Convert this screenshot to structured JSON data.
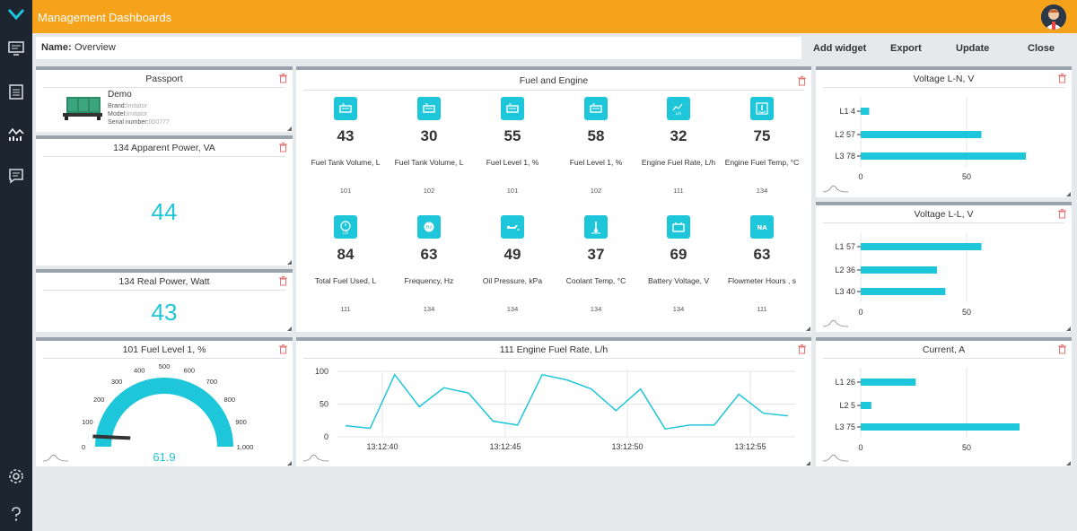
{
  "topbar": {
    "crumb1": "Management",
    "crumb2": "Dashboards"
  },
  "namebar": {
    "label": "Name:",
    "value": "Overview"
  },
  "toolbar": {
    "add": "Add widget",
    "export": "Export",
    "update": "Update",
    "close": "Close"
  },
  "passport": {
    "title": "Passport",
    "name": "Demo",
    "brand_label": "Brand:",
    "brand": "Imitator",
    "model_label": "Model:",
    "model": "Imitator",
    "serial_label": "Serial number:",
    "serial": "000777"
  },
  "apparent": {
    "title": "134  Apparent Power,  VA",
    "value": "44"
  },
  "real": {
    "title": "134  Real Power,  Watt",
    "value": "43"
  },
  "gauge": {
    "title": "101  Fuel Level 1,  %",
    "value": "61.9",
    "ticks": [
      "0",
      "100",
      "200",
      "300",
      "400",
      "500",
      "600",
      "700",
      "800",
      "900",
      "1,000"
    ]
  },
  "fuel_engine": {
    "title": "Fuel and Engine",
    "metrics": [
      {
        "icon": "fuel-tank-icon",
        "value": "43",
        "label": "Fuel Tank Volume, L",
        "id": "101"
      },
      {
        "icon": "fuel-tank-icon",
        "value": "30",
        "label": "Fuel Tank Volume, L",
        "id": "102"
      },
      {
        "icon": "fuel-tank-icon",
        "value": "55",
        "label": "Fuel Level 1, %",
        "id": "101"
      },
      {
        "icon": "fuel-tank-icon",
        "value": "58",
        "label": "Fuel Level 1, %",
        "id": "102"
      },
      {
        "icon": "fuel-rate-icon",
        "value": "32",
        "label": "Engine Fuel Rate, L/h",
        "id": "111"
      },
      {
        "icon": "engine-temp-icon",
        "value": "75",
        "label": "Engine Fuel Temp, °C",
        "id": "134"
      },
      {
        "icon": "total-fuel-icon",
        "value": "84",
        "label": "Total Fuel Used, L",
        "id": "111"
      },
      {
        "icon": "frequency-icon",
        "value": "63",
        "label": "Frequency, Hz",
        "id": "134"
      },
      {
        "icon": "oil-can-icon",
        "value": "49",
        "label": "Oil Pressure, kPa",
        "id": "134"
      },
      {
        "icon": "thermometer-icon",
        "value": "37",
        "label": "Coolant Temp, °C",
        "id": "134"
      },
      {
        "icon": "battery-icon",
        "value": "69",
        "label": "Battery Voltage, V",
        "id": "134"
      },
      {
        "icon": "na-icon",
        "value": "63",
        "label": "Flowmeter Hours , s",
        "id": "111"
      }
    ]
  },
  "line_chart": {
    "title": "111  Engine Fuel Rate,  L/h",
    "chart_data": {
      "type": "line",
      "ylim": [
        0,
        100
      ],
      "yticks": [
        "100",
        "50",
        "0"
      ],
      "xticks": [
        "13:12:40",
        "13:12:45",
        "13:12:50",
        "13:12:55"
      ],
      "values": [
        17,
        13,
        95,
        46,
        75,
        67,
        24,
        18,
        95,
        87,
        73,
        40,
        73,
        12,
        18,
        18,
        65,
        36,
        32
      ]
    }
  },
  "bar_charts": [
    {
      "title": "Voltage L-N, V",
      "chart_data": {
        "type": "bar",
        "categories": [
          "L1 4",
          "L2 57",
          "L3 78"
        ],
        "values": [
          4,
          57,
          78
        ],
        "xticks": [
          "0",
          "50"
        ],
        "xlim": [
          0,
          100
        ]
      }
    },
    {
      "title": "Voltage L-L, V",
      "chart_data": {
        "type": "bar",
        "categories": [
          "L1 57",
          "L2 36",
          "L3 40"
        ],
        "values": [
          57,
          36,
          40
        ],
        "xticks": [
          "0",
          "50"
        ],
        "xlim": [
          0,
          100
        ]
      }
    },
    {
      "title": "Current, A",
      "chart_data": {
        "type": "bar",
        "categories": [
          "L1 26",
          "L2 5",
          "L3 75"
        ],
        "values": [
          26,
          5,
          75
        ],
        "xticks": [
          "0",
          "50"
        ],
        "xlim": [
          0,
          100
        ]
      }
    }
  ],
  "colors": {
    "accent": "#1ec6d9",
    "topbar": "#f6a21a",
    "sidebar": "#1c2530",
    "trash": "#e57373"
  }
}
